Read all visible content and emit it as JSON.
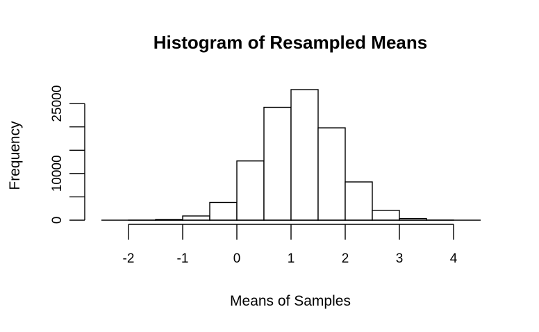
{
  "chart_data": {
    "type": "bar",
    "title": "Histogram of Resampled Means",
    "xlabel": "Means of Samples",
    "ylabel": "Frequency",
    "x_ticks": [
      "-2",
      "-1",
      "0",
      "1",
      "2",
      "3",
      "4"
    ],
    "y_ticks": [
      "0",
      "10000",
      "25000"
    ],
    "y_tick_values": [
      0,
      5000,
      10000,
      15000,
      20000,
      25000
    ],
    "y_tick_labels": [
      "0",
      "",
      "10000",
      "",
      "",
      "25000"
    ],
    "xlim": [
      -2.5,
      4.5
    ],
    "ylim": [
      0,
      28000
    ],
    "bins": [
      {
        "x0": -2.0,
        "x1": -1.5,
        "count": 20
      },
      {
        "x0": -1.5,
        "x1": -1.0,
        "count": 150
      },
      {
        "x0": -1.0,
        "x1": -0.5,
        "count": 900
      },
      {
        "x0": -0.5,
        "x1": 0.0,
        "count": 3800
      },
      {
        "x0": 0.0,
        "x1": 0.5,
        "count": 12700
      },
      {
        "x0": 0.5,
        "x1": 1.0,
        "count": 24200
      },
      {
        "x0": 1.0,
        "x1": 1.5,
        "count": 28000
      },
      {
        "x0": 1.5,
        "x1": 2.0,
        "count": 19800
      },
      {
        "x0": 2.0,
        "x1": 2.5,
        "count": 8200
      },
      {
        "x0": 2.5,
        "x1": 3.0,
        "count": 2100
      },
      {
        "x0": 3.0,
        "x1": 3.5,
        "count": 350
      },
      {
        "x0": 3.5,
        "x1": 4.0,
        "count": 40
      }
    ],
    "grid": false
  }
}
